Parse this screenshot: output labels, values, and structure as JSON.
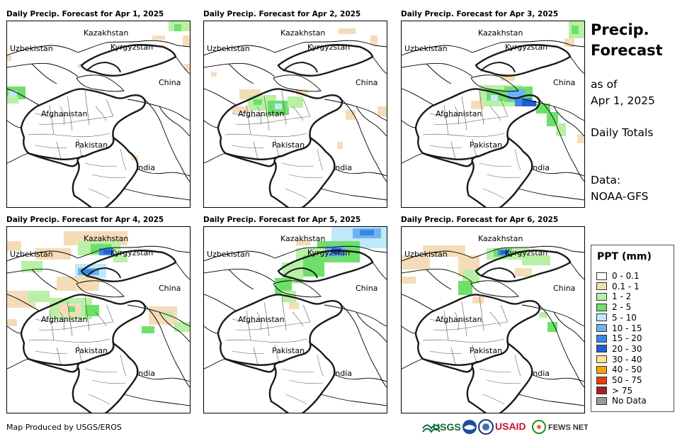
{
  "panels": [
    {
      "title": "Daily Precip. Forecast for Apr 1, 2025"
    },
    {
      "title": "Daily Precip. Forecast for Apr 2, 2025"
    },
    {
      "title": "Daily Precip. Forecast for Apr 3, 2025"
    },
    {
      "title": "Daily Precip. Forecast for Apr 4, 2025"
    },
    {
      "title": "Daily Precip. Forecast for Apr 5, 2025"
    },
    {
      "title": "Daily Precip. Forecast for Apr 6, 2025"
    }
  ],
  "map_labels": {
    "kazakhstan": "Kazakhstan",
    "uzbekistan": "Uzbekistan",
    "kyrgyzstan": "Kyrgyzstan",
    "china": "China",
    "afghanistan": "Afghanistan",
    "pakistan": "Pakistan",
    "india": "India"
  },
  "side": {
    "title_line1": "Precip.",
    "title_line2": "Forecast",
    "asof_line1": "as of",
    "asof_line2": "Apr 1, 2025",
    "totals": "Daily Totals",
    "data_label": "Data:",
    "data_source": "NOAA-GFS"
  },
  "legend": {
    "title": "PPT (mm)",
    "entries": [
      {
        "label": "0 - 0.1",
        "color": "#ffffff"
      },
      {
        "label": "0.1 - 1",
        "color": "#f5dcb8"
      },
      {
        "label": "1 - 2",
        "color": "#b9f0a6"
      },
      {
        "label": "2 - 5",
        "color": "#6ee06a"
      },
      {
        "label": "5 - 10",
        "color": "#bfe9fa"
      },
      {
        "label": "10 - 15",
        "color": "#6fb4f0"
      },
      {
        "label": "15 - 20",
        "color": "#3a88e6"
      },
      {
        "label": "20 - 30",
        "color": "#1f5ed6"
      },
      {
        "label": "30 - 40",
        "color": "#fde58a"
      },
      {
        "label": "40 - 50",
        "color": "#f8a400"
      },
      {
        "label": "50 - 75",
        "color": "#ec3c12"
      },
      {
        "label": "> 75",
        "color": "#a81e1e"
      },
      {
        "label": "No Data",
        "color": "#9b9b9b"
      }
    ]
  },
  "footer": {
    "credit": "Map Produced by USGS/EROS"
  },
  "logos": {
    "usgs": "USGS",
    "usaid": "USAID",
    "fews": "FEWS NET",
    "noaa": "NOAA"
  }
}
